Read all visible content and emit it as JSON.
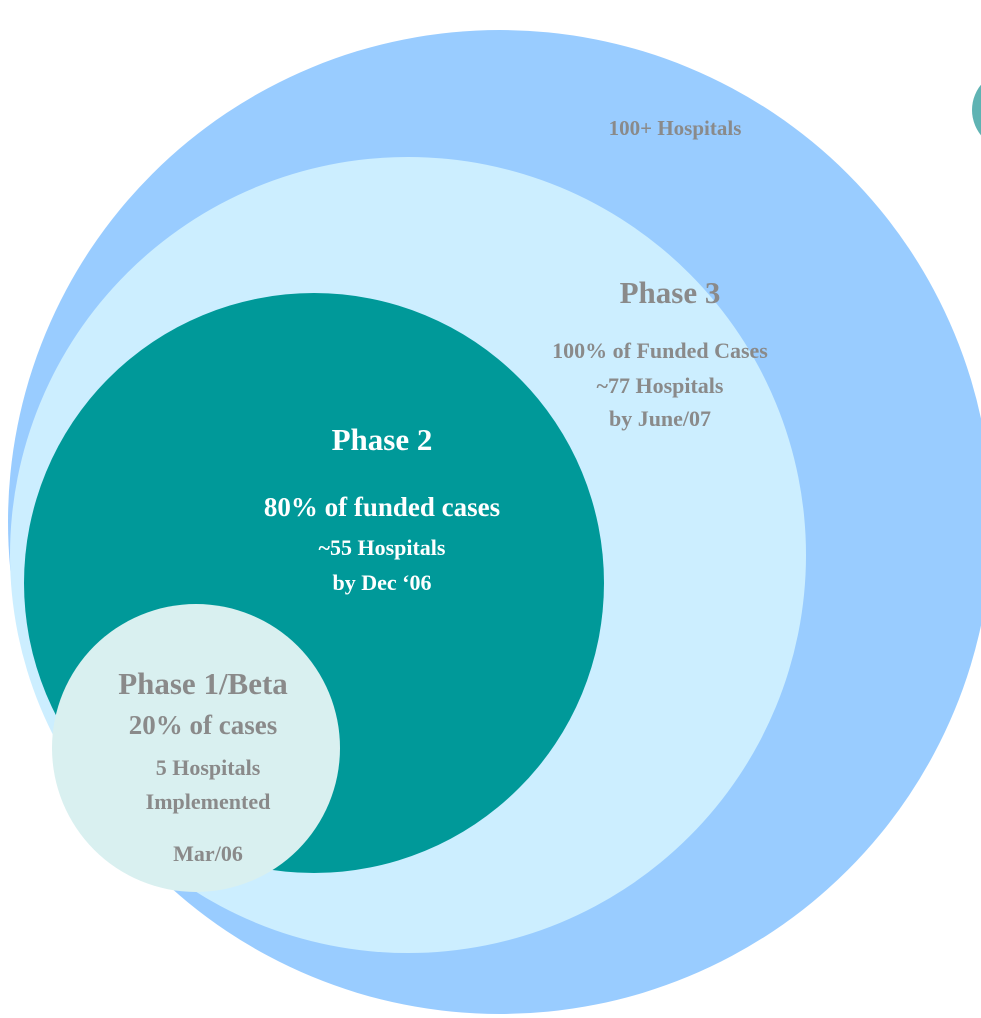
{
  "outer": {
    "label": "100+ Hospitals"
  },
  "phases": [
    {
      "title": "Phase 3",
      "lines": [
        "100% of Funded Cases",
        "~77 Hospitals",
        "by June/07"
      ]
    },
    {
      "title": "Phase 2",
      "lines": [
        "80% of funded cases",
        "~55 Hospitals",
        "by Dec ‘06"
      ]
    },
    {
      "title": "Phase 1/Beta",
      "lines": [
        "20% of cases",
        "5 Hospitals",
        "Implemented",
        "Mar/06"
      ]
    }
  ]
}
